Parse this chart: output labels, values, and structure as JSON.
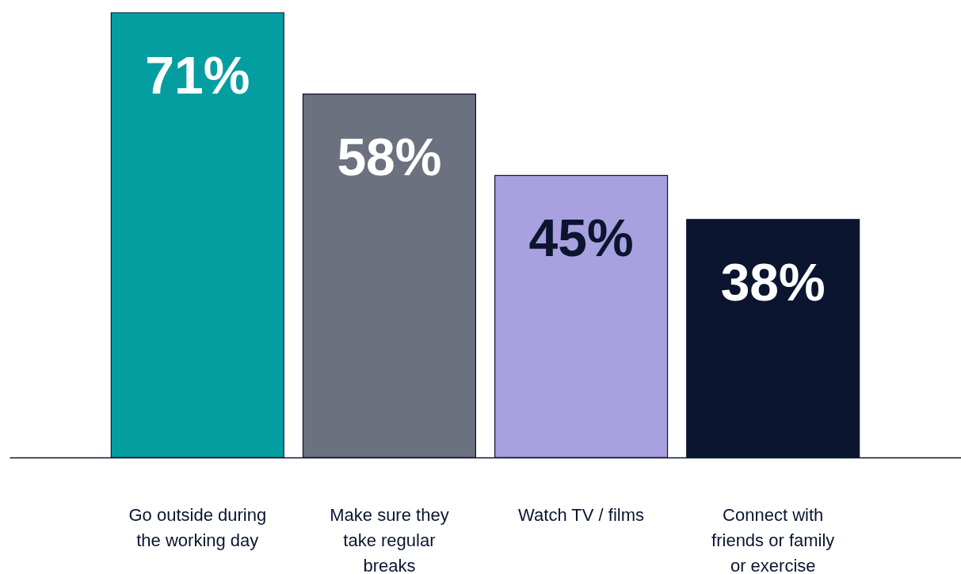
{
  "chart_data": {
    "type": "bar",
    "categories": [
      "Go outside during the working day",
      "Make sure they take regular breaks",
      "Watch TV / films",
      "Connect with friends or family or exercise"
    ],
    "values": [
      71,
      58,
      45,
      38
    ],
    "colors": [
      "#049ea1",
      "#6b717e",
      "#a9a0e0",
      "#0b1530"
    ],
    "value_labels": [
      "71%",
      "58%",
      "45%",
      "38%"
    ]
  }
}
